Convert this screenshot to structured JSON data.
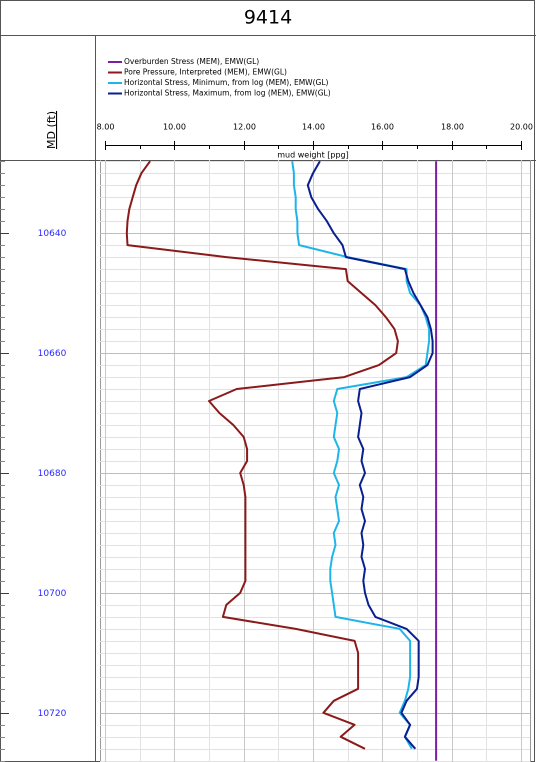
{
  "chart_data": {
    "type": "line",
    "orientation": "vertical",
    "title": "9414",
    "ylabel": "MD (ft)",
    "xlabel": "mud weight [ppg]",
    "y_inverted": true,
    "x": [
      10628,
      10630,
      10632,
      10634,
      10636,
      10638,
      10640,
      10642,
      10644,
      10646,
      10648,
      10650,
      10652,
      10654,
      10656,
      10658,
      10660,
      10662,
      10664,
      10666,
      10668,
      10670,
      10672,
      10674,
      10676,
      10678,
      10680,
      10682,
      10684,
      10686,
      10688,
      10690,
      10692,
      10694,
      10696,
      10698,
      10700,
      10702,
      10704,
      10706,
      10708,
      10710,
      10712,
      10714,
      10716,
      10718,
      10720,
      10722,
      10724,
      10726,
      10728
    ],
    "series": [
      {
        "name": "Overburden Stress (MEM), EMW(GL)",
        "color": "#7b1fa2",
        "values": [
          17.55,
          17.55,
          17.55,
          17.55,
          17.55,
          17.55,
          17.55,
          17.55,
          17.55,
          17.55,
          17.55,
          17.55,
          17.55,
          17.55,
          17.55,
          17.55,
          17.55,
          17.55,
          17.55,
          17.55,
          17.55,
          17.55,
          17.55,
          17.55,
          17.55,
          17.55,
          17.55,
          17.55,
          17.55,
          17.55,
          17.55,
          17.55,
          17.55,
          17.55,
          17.55,
          17.55,
          17.55,
          17.55,
          17.55,
          17.55,
          17.55,
          17.55,
          17.55,
          17.55,
          17.55,
          17.55,
          17.55,
          17.55,
          17.55,
          17.55,
          17.55
        ]
      },
      {
        "name": "Pore Pressure, Interpreted (MEM), EMW(GL)",
        "color": "#8b1a1a",
        "values": [
          9.3,
          9.05,
          8.9,
          8.8,
          8.7,
          8.65,
          8.63,
          8.65,
          11.5,
          14.95,
          15.0,
          15.4,
          15.8,
          16.1,
          16.35,
          16.45,
          16.4,
          15.9,
          14.9,
          11.8,
          11.0,
          11.3,
          11.7,
          12.0,
          12.1,
          12.1,
          11.9,
          12.0,
          12.05,
          12.05,
          12.05,
          12.05,
          12.05,
          12.05,
          12.05,
          12.05,
          11.9,
          11.5,
          11.4,
          13.5,
          15.2,
          15.3,
          15.3,
          15.3,
          15.3,
          14.6,
          14.3,
          15.2,
          14.8,
          15.5,
          null
        ]
      },
      {
        "name": "Horizontal Stress, Minimum, from log (MEM), EMW(GL)",
        "color": "#1fb5e8",
        "values": [
          13.4,
          13.45,
          13.45,
          13.5,
          13.5,
          13.55,
          13.55,
          13.6,
          15.0,
          16.7,
          16.7,
          16.8,
          17.1,
          17.25,
          17.35,
          17.35,
          17.3,
          17.25,
          16.7,
          14.7,
          14.6,
          14.7,
          14.65,
          14.6,
          14.75,
          14.7,
          14.6,
          14.75,
          14.65,
          14.7,
          14.75,
          14.6,
          14.65,
          14.55,
          14.5,
          14.5,
          14.55,
          14.6,
          14.65,
          16.5,
          16.8,
          16.8,
          16.8,
          16.8,
          16.75,
          16.65,
          16.5,
          16.8,
          16.65,
          16.85,
          null
        ]
      },
      {
        "name": "Horizontal Stress, Maximum, from log (MEM), EMW(GL)",
        "color": "#0a1f8f",
        "values": [
          14.2,
          14.0,
          13.85,
          13.95,
          14.15,
          14.4,
          14.6,
          14.85,
          14.95,
          16.65,
          16.75,
          16.9,
          17.1,
          17.3,
          17.4,
          17.45,
          17.45,
          17.3,
          16.8,
          15.35,
          15.3,
          15.4,
          15.35,
          15.3,
          15.45,
          15.4,
          15.5,
          15.35,
          15.45,
          15.4,
          15.5,
          15.4,
          15.45,
          15.4,
          15.5,
          15.45,
          15.5,
          15.6,
          15.8,
          16.7,
          17.05,
          17.05,
          17.05,
          17.05,
          17.0,
          16.7,
          16.55,
          16.8,
          16.65,
          16.95,
          null
        ]
      }
    ],
    "xlim": [
      8,
      20
    ],
    "xticks": [
      {
        "value": 8,
        "label": "8.00"
      },
      {
        "value": 10,
        "label": "10.00"
      },
      {
        "value": 12,
        "label": "12.00"
      },
      {
        "value": 14,
        "label": "14.00"
      },
      {
        "value": 16,
        "label": "16.00"
      },
      {
        "value": 18,
        "label": "18.00"
      },
      {
        "value": 20,
        "label": "20.00"
      }
    ],
    "x_minor_step": 1,
    "ylim": [
      10627.8,
      10728.2
    ],
    "yticks": [
      10640,
      10660,
      10680,
      10700,
      10720
    ],
    "y_minor_step": 2,
    "grid": true
  }
}
